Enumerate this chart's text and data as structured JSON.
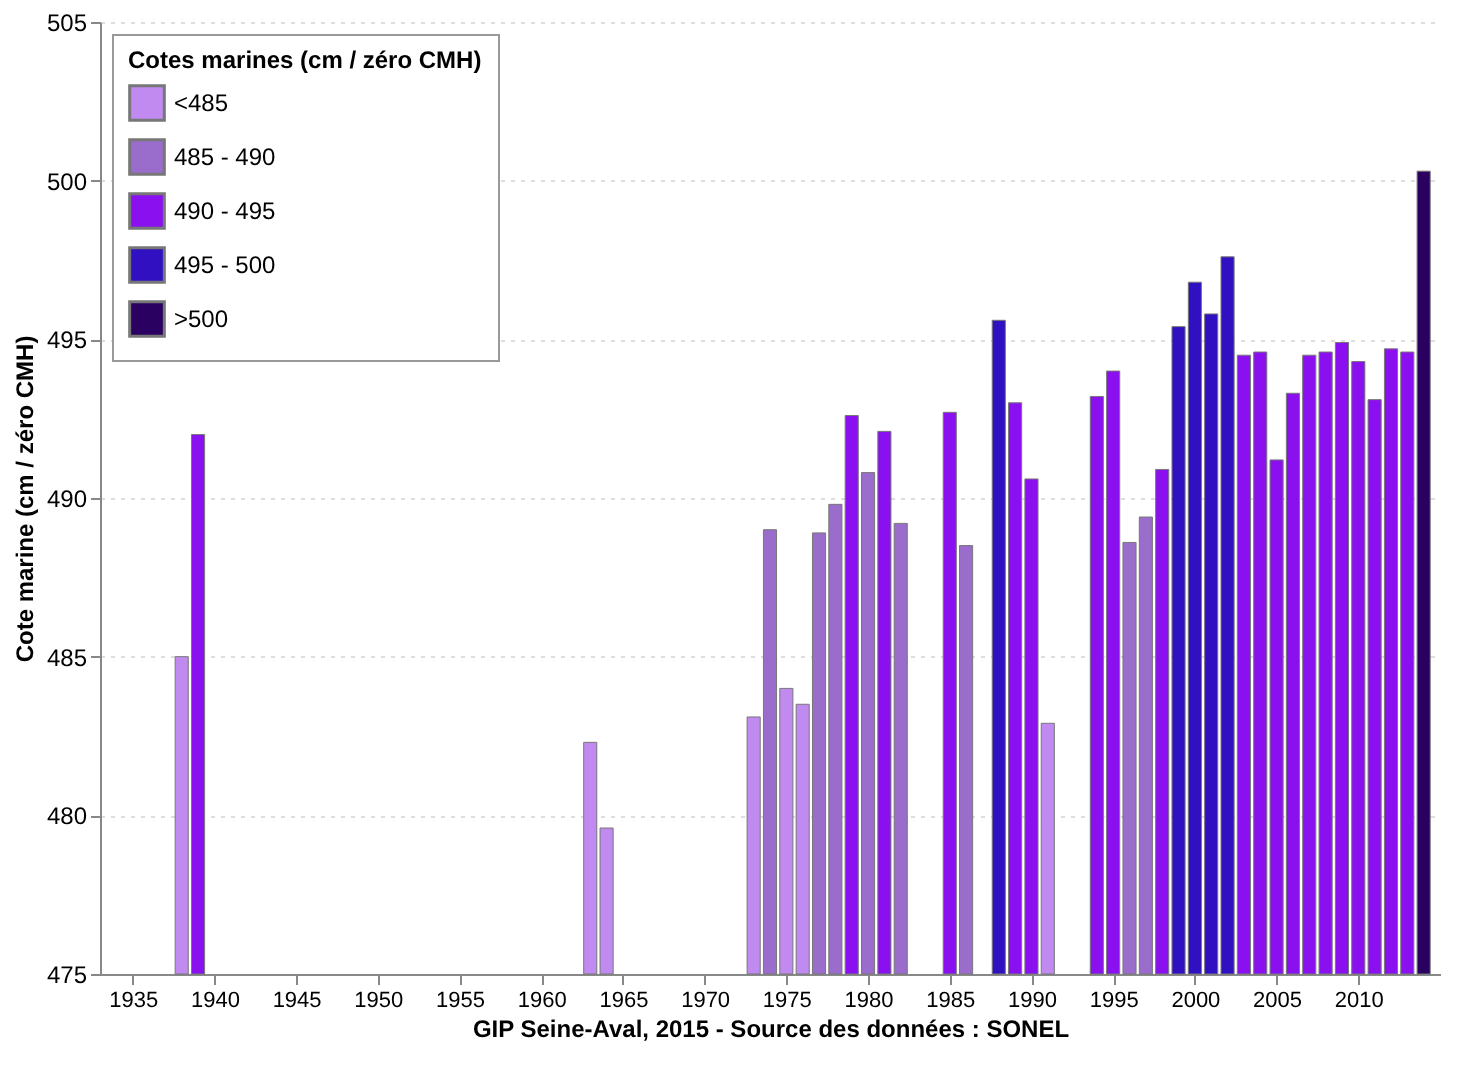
{
  "chart_data": {
    "type": "bar",
    "xlabel": "GIP Seine-Aval, 2015 - Source des données : SONEL",
    "ylabel": "Cote marine (cm / zéro CMH)",
    "legend_title": "Cotes marines (cm / zéro CMH)",
    "series": [
      {
        "name": "<485",
        "color": "#c08af0",
        "x": [
          1938,
          1963,
          1964,
          1973,
          1975,
          1976,
          1991
        ],
        "values": [
          485.0,
          482.3,
          479.6,
          483.1,
          484.0,
          483.5,
          482.9
        ]
      },
      {
        "name": "485 - 490",
        "color": "#9a6ccc",
        "x": [
          1974,
          1977,
          1978,
          1980,
          1982,
          1986,
          1996,
          1997
        ],
        "values": [
          489.0,
          488.9,
          489.8,
          490.8,
          489.2,
          488.5,
          488.6,
          489.4
        ]
      },
      {
        "name": "490 - 495",
        "color": "#8a10f0",
        "x": [
          1939,
          1979,
          1981,
          1985,
          1989,
          1990,
          1994,
          1995,
          1998,
          2003,
          2004,
          2005,
          2006,
          2007,
          2008,
          2009,
          2010,
          2011,
          2012,
          2013
        ],
        "values": [
          492.0,
          492.6,
          492.1,
          492.7,
          493.0,
          490.6,
          493.2,
          494.0,
          490.9,
          494.5,
          494.6,
          491.2,
          493.3,
          494.5,
          494.6,
          494.9,
          494.3,
          493.1,
          494.7,
          494.6
        ]
      },
      {
        "name": "495 - 500",
        "color": "#3010c0",
        "x": [
          1988,
          1999,
          2000,
          2001,
          2002
        ],
        "values": [
          495.6,
          495.4,
          496.8,
          495.8,
          497.6
        ]
      },
      {
        "name": ">500",
        "color": "#2a0060",
        "x": [
          2014
        ],
        "values": [
          500.3
        ]
      }
    ],
    "xlim": [
      1933,
      2015
    ],
    "xticks": [
      1935,
      1940,
      1945,
      1950,
      1955,
      1960,
      1965,
      1970,
      1975,
      1980,
      1985,
      1990,
      1995,
      2000,
      2005,
      2010
    ],
    "ylim": [
      475,
      505
    ],
    "yticks": [
      475,
      480,
      485,
      490,
      495,
      500,
      505
    ],
    "grid": "y",
    "legend": "top left"
  }
}
